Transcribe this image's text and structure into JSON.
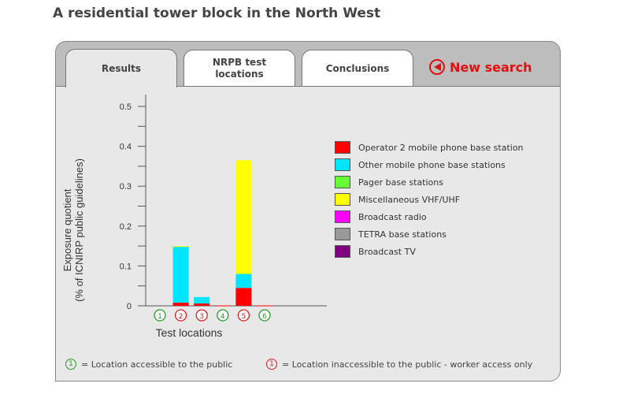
{
  "page_title": "A residential tower block in the North West",
  "tabs": [
    {
      "label": "Results",
      "active": true
    },
    {
      "label": "NRPB test locations"
    },
    {
      "label": "Conclusions"
    }
  ],
  "new_search": {
    "label": "New search",
    "icon": "left-arrow-circle-icon"
  },
  "colors": {
    "accessible": "#2a9a2a",
    "inaccessible": "#e02020"
  },
  "chart_data": {
    "type": "bar",
    "stacked": true,
    "ylabel": "Exposure quotient\n(% of ICNIRP public guidelines)",
    "ylabel_lines": [
      "Exposure quotient",
      "(% of ICNIRP public guidelines)"
    ],
    "xlabel": "Test locations",
    "ylim": [
      0,
      0.5
    ],
    "yticks": [
      "0",
      "0.1",
      "0.2",
      "0.3",
      "0.4",
      "0.5"
    ],
    "categories": [
      "1",
      "2",
      "3",
      "4",
      "5",
      "6"
    ],
    "category_access": [
      "public",
      "worker",
      "worker",
      "public",
      "worker",
      "public"
    ],
    "legend_placement": "right",
    "series": [
      {
        "name": "Operator 2 mobile phone base station",
        "color": "#ff0000",
        "values": [
          0,
          0.008,
          0.006,
          0.001,
          0.045,
          0.001
        ]
      },
      {
        "name": "Other mobile phone base stations",
        "color": "#00e5ff",
        "values": [
          0,
          0.14,
          0.016,
          0,
          0.035,
          0
        ]
      },
      {
        "name": "Pager base stations",
        "color": "#66ff33",
        "values": [
          0,
          0,
          0,
          0,
          0,
          0
        ]
      },
      {
        "name": "Miscellaneous VHF/UHF",
        "color": "#ffff00",
        "values": [
          0,
          0.002,
          0,
          0,
          0.285,
          0
        ]
      },
      {
        "name": "Broadcast radio",
        "color": "#ff00ff",
        "values": [
          0,
          0,
          0,
          0,
          0,
          0
        ]
      },
      {
        "name": "TETRA base stations",
        "color": "#999999",
        "values": [
          0,
          0,
          0,
          0,
          0,
          0
        ]
      },
      {
        "name": "Broadcast TV",
        "color": "#800080",
        "values": [
          0,
          0,
          0,
          0,
          0,
          0
        ]
      }
    ]
  },
  "notes": [
    {
      "badge": "1",
      "text": "= Location accessible to the public"
    },
    {
      "badge": "1",
      "text": "= Location inaccessible to the public - worker access only"
    }
  ]
}
